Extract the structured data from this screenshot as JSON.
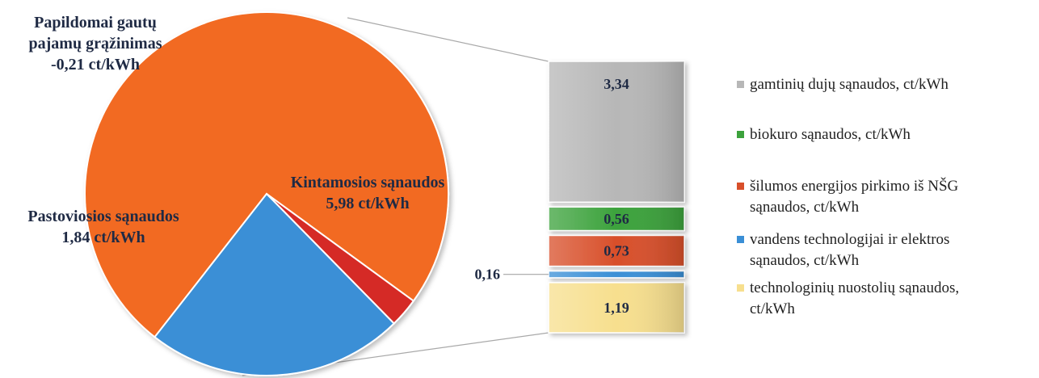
{
  "chart_data": [
    {
      "type": "pie",
      "slices": [
        {
          "label_lines": [
            "Kintamosios sąnaudos",
            "5,98 ct/kWh"
          ],
          "value": 5.98,
          "color": "#f26a21"
        },
        {
          "label_lines": [
            "Papildomai gautų",
            "pajamų grąžinimas",
            "-0,21 ct/kWh"
          ],
          "value": 0.21,
          "color": "#d52b28"
        },
        {
          "label_lines": [
            "Pastoviosios sąnaudos",
            "1,84 ct/kWh"
          ],
          "value": 1.84,
          "color": "#3a8fd6"
        }
      ]
    },
    {
      "type": "bar",
      "stacked": true,
      "segments": [
        {
          "label": "1,19",
          "value": 1.19,
          "color": "#f7df8e",
          "legend": [
            "technologinių nuostolių sąnaudos,",
            "ct/kWh"
          ]
        },
        {
          "label": "0,16",
          "value": 0.16,
          "color": "#3a8fd6",
          "legend": [
            "vandens technologijai ir elektros",
            "sąnaudos, ct/kWh"
          ]
        },
        {
          "label": "0,73",
          "value": 0.73,
          "color": "#d84f2a",
          "legend": [
            "šilumos energijos pirkimo iš NŠG",
            "sąnaudos, ct/kWh"
          ]
        },
        {
          "label": "0,56",
          "value": 0.56,
          "color": "#3ca23c",
          "legend": [
            "biokuro sąnaudos, ct/kWh"
          ]
        },
        {
          "label": "3,34",
          "value": 3.34,
          "color": "#b7b7b7",
          "legend": [
            "gamtinių dujų sąnaudos, ct/kWh"
          ]
        }
      ]
    }
  ]
}
